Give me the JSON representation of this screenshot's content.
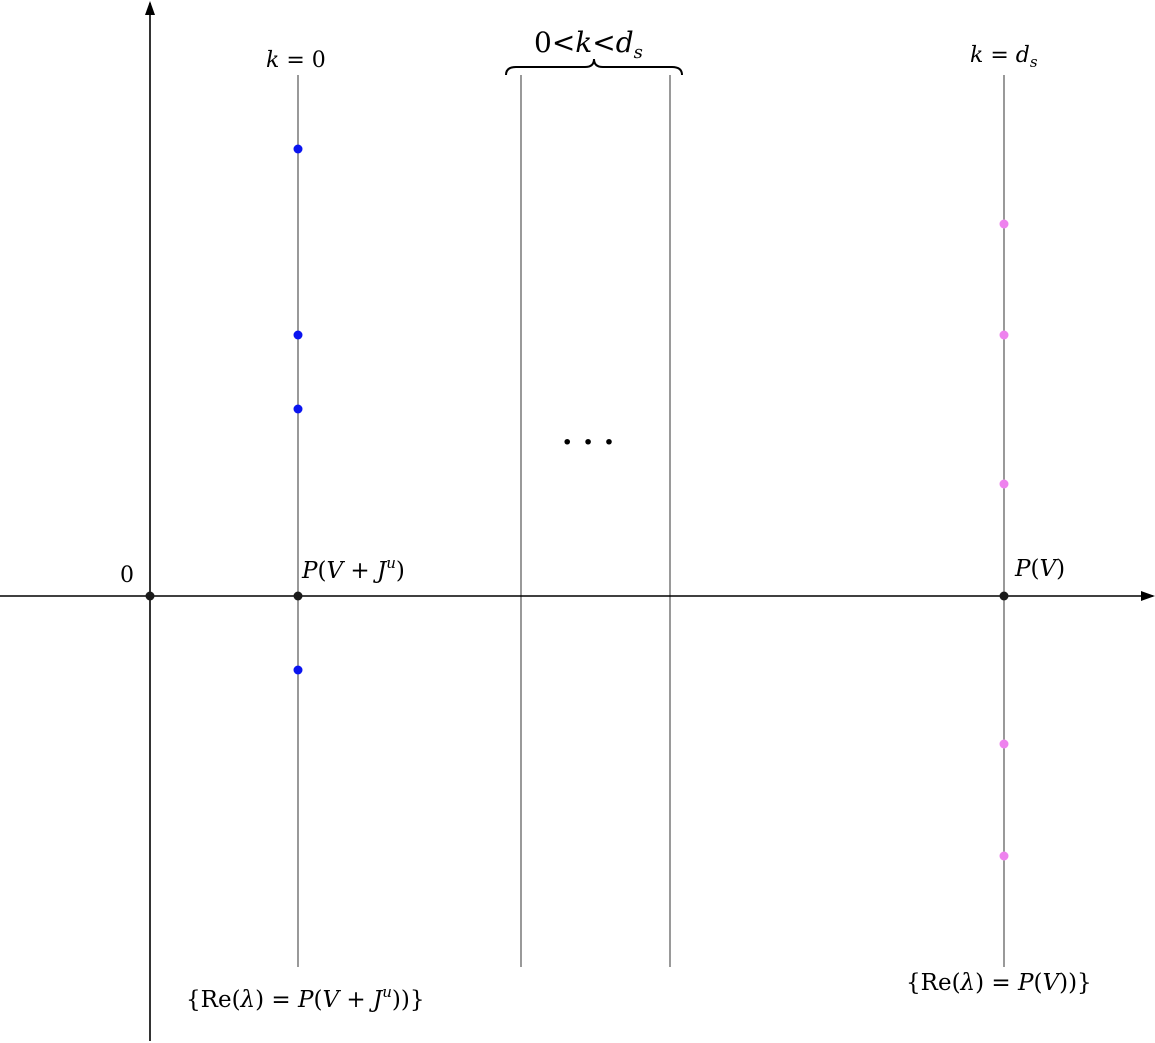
{
  "labels": {
    "origin": "0",
    "k_zero": {
      "k": "k",
      "eq": " = 0"
    },
    "k_range": {
      "left": "0<",
      "k": "k",
      "lt": "<",
      "d": "d",
      "sub": "s"
    },
    "k_ds": {
      "k": "k",
      "eq": " = ",
      "d": "d",
      "sub": "s"
    },
    "ellipsis": "· · ·",
    "p_v_ju": {
      "P": "P",
      "open": "(",
      "V": "V",
      "plus": " + ",
      "J": "J",
      "sup": "u",
      "close": ")"
    },
    "p_v": {
      "P": "P",
      "open": "(",
      "V": "V",
      "close": ")"
    },
    "bottom_left": {
      "brace_open": "{",
      "re": "Re(",
      "lambda": "λ",
      "mid": ") = ",
      "P": "P",
      "open": "(",
      "V": "V",
      "plus": " + ",
      "J": "J",
      "sup": "u",
      "close": "))",
      "brace_close": "}"
    },
    "bottom_right": {
      "brace_open": "{",
      "re": "Re(",
      "lambda": "λ",
      "mid": ") = ",
      "P": "P",
      "open": "(",
      "V": "V",
      "close": "))",
      "brace_close": "}"
    }
  },
  "colors": {
    "axis": "#000000",
    "blue_points": "#0a14f0",
    "pink_points": "#ee82ee",
    "black_points": "#1a1a1a"
  }
}
